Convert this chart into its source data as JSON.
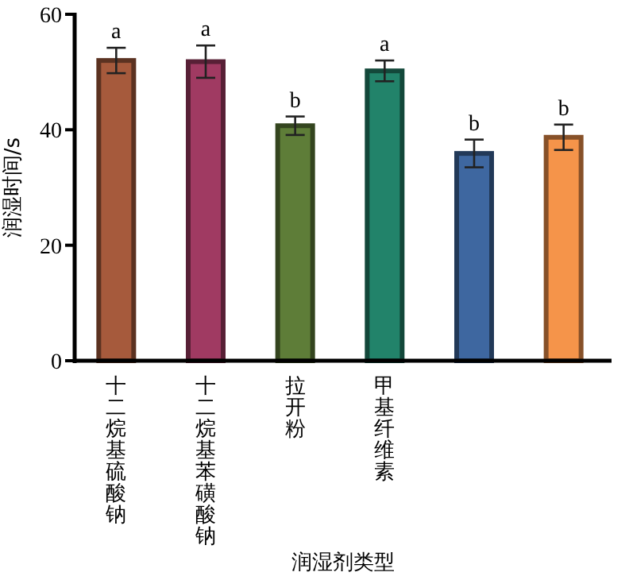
{
  "chart_data": {
    "type": "bar",
    "xlabel": "润湿剂类型",
    "ylabel": "润湿时间/s",
    "categories": [
      "十二烷基硫酸钠",
      "十二烷基苯磺酸钠",
      "拉开粉",
      "甲基纤维素",
      null,
      null
    ],
    "values": [
      52.0,
      51.8,
      40.7,
      50.2,
      35.9,
      38.7
    ],
    "errors": [
      2.2,
      2.8,
      1.6,
      1.8,
      2.4,
      2.2
    ],
    "colors": [
      "#a65a3c",
      "#a03a62",
      "#5e7d38",
      "#22836a",
      "#3e67a0",
      "#f5944a"
    ],
    "ylim": [
      0,
      60
    ],
    "yticks": [
      0,
      20,
      40,
      60
    ],
    "grid": false,
    "annotations": [
      "a",
      "a",
      "b",
      "a",
      "b",
      "b"
    ]
  }
}
